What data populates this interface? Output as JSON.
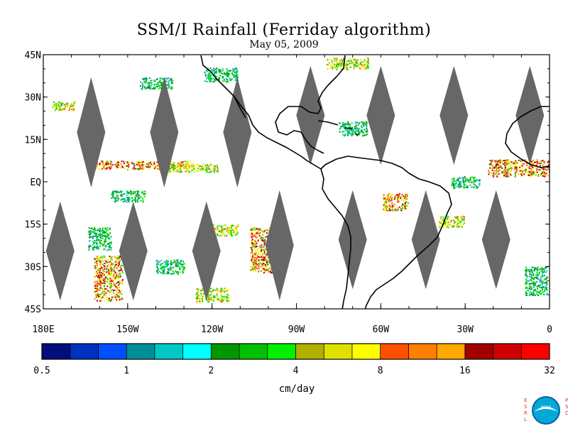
{
  "title": "SSM/I Rainfall (Ferriday algorithm)",
  "subtitle": "May 05, 2009",
  "map": {
    "lat_labels": [
      "45N",
      "30N",
      "15N",
      "EQ",
      "15S",
      "30S",
      "45S"
    ],
    "lat_values": [
      45,
      30,
      15,
      0,
      -15,
      -30,
      -45
    ],
    "lon_labels": [
      "180E",
      "150W",
      "120W",
      "90W",
      "60W",
      "30W",
      "0"
    ],
    "lon_values": [
      -180,
      -150,
      -120,
      -90,
      -60,
      -30,
      0
    ],
    "extent": {
      "lon_min": -180,
      "lon_max": 0,
      "lat_min": -45,
      "lat_max": 45
    },
    "no_data_color": "#676767",
    "coast_color": "#000000",
    "swath_gaps": [
      {
        "lon": -163,
        "lat_top": 37,
        "lat_bottom": -2
      },
      {
        "lon": -137,
        "lat_top": 37,
        "lat_bottom": -2
      },
      {
        "lon": -111,
        "lat_top": 37,
        "lat_bottom": -2
      },
      {
        "lon": -85,
        "lat_top": 41,
        "lat_bottom": 6
      },
      {
        "lon": -60,
        "lat_top": 41,
        "lat_bottom": 6
      },
      {
        "lon": -34,
        "lat_top": 41,
        "lat_bottom": 6
      },
      {
        "lon": -7,
        "lat_top": 41,
        "lat_bottom": 6
      },
      {
        "lon": -174,
        "lat_top": -7,
        "lat_bottom": -42
      },
      {
        "lon": -148,
        "lat_top": -7,
        "lat_bottom": -42
      },
      {
        "lon": -122,
        "lat_top": -7,
        "lat_bottom": -42
      },
      {
        "lon": -96,
        "lat_top": -3,
        "lat_bottom": -42
      },
      {
        "lon": -70,
        "lat_top": -3,
        "lat_bottom": -38
      },
      {
        "lon": -44,
        "lat_top": -3,
        "lat_bottom": -38
      },
      {
        "lon": -19,
        "lat_top": -3,
        "lat_bottom": -38
      }
    ],
    "rain_regions": [
      {
        "lon": -145,
        "lat": 6,
        "w": 34,
        "h": 3,
        "intensity": "high"
      },
      {
        "lon": -127,
        "lat": 5,
        "w": 18,
        "h": 3,
        "intensity": "mid"
      },
      {
        "lon": -150,
        "lat": -5,
        "w": 12,
        "h": 4,
        "intensity": "low"
      },
      {
        "lon": -117,
        "lat": -17,
        "w": 12,
        "h": 4,
        "intensity": "mid"
      },
      {
        "lon": -102,
        "lat": -24,
        "w": 9,
        "h": 16,
        "intensity": "high"
      },
      {
        "lon": -157,
        "lat": -34,
        "w": 10,
        "h": 16,
        "intensity": "high"
      },
      {
        "lon": -55,
        "lat": -7,
        "w": 9,
        "h": 6,
        "intensity": "high"
      },
      {
        "lon": -10,
        "lat": 5,
        "w": 24,
        "h": 6,
        "intensity": "high"
      },
      {
        "lon": -173,
        "lat": 27,
        "w": 8,
        "h": 3,
        "intensity": "mid"
      },
      {
        "lon": -140,
        "lat": 35,
        "w": 12,
        "h": 4,
        "intensity": "low"
      },
      {
        "lon": -117,
        "lat": 38,
        "w": 12,
        "h": 5,
        "intensity": "low"
      },
      {
        "lon": -70,
        "lat": 19,
        "w": 10,
        "h": 5,
        "intensity": "low"
      },
      {
        "lon": -72,
        "lat": 42,
        "w": 15,
        "h": 4,
        "intensity": "mid"
      },
      {
        "lon": -35,
        "lat": -14,
        "w": 9,
        "h": 4,
        "intensity": "mid"
      },
      {
        "lon": -160,
        "lat": -20,
        "w": 8,
        "h": 8,
        "intensity": "low"
      },
      {
        "lon": -135,
        "lat": -30,
        "w": 10,
        "h": 5,
        "intensity": "low"
      },
      {
        "lon": -120,
        "lat": -40,
        "w": 12,
        "h": 5,
        "intensity": "mid"
      },
      {
        "lon": -5,
        "lat": -35,
        "w": 8,
        "h": 10,
        "intensity": "low"
      },
      {
        "lon": -30,
        "lat": 0,
        "w": 10,
        "h": 4,
        "intensity": "low"
      }
    ]
  },
  "colorbar": {
    "colors": [
      "#000e7e",
      "#0030be",
      "#0050ff",
      "#008f9a",
      "#00c8c8",
      "#00ffff",
      "#009800",
      "#00c000",
      "#00f000",
      "#b0b000",
      "#e0e000",
      "#ffff00",
      "#ff5000",
      "#ff8000",
      "#ffa800",
      "#a00000",
      "#d00000",
      "#ff0000"
    ],
    "labels": [
      "0.5",
      "1",
      "2",
      "4",
      "8",
      "16",
      "32"
    ],
    "units": "cm/day"
  },
  "logo": {
    "left_letters": "ESRL",
    "right_letters": "PSD",
    "center_text": "NOAA"
  }
}
